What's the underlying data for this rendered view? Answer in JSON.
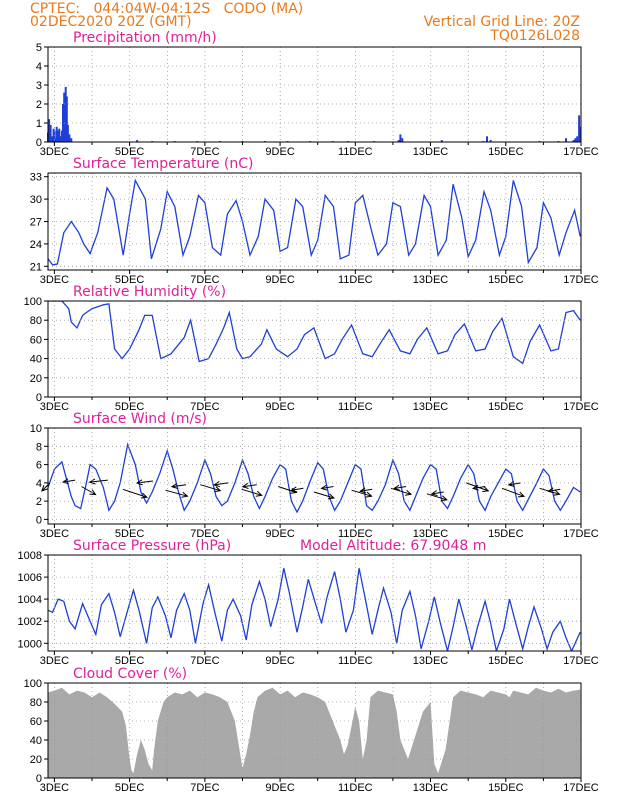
{
  "header": {
    "station": "CPTEC:   044:04W-04:12S   CODO (MA)",
    "run": "02DEC2020 20Z (GMT)",
    "grid_line": "Vertical Grid Line: 20Z",
    "code": "TQ0126L028"
  },
  "colors": {
    "line": "#1f3fd6",
    "header": "#e87a1e",
    "title": "#e0209a",
    "cloud": "#a9a9a9",
    "grid": "#9a9a9a"
  },
  "x_tick_labels": [
    "3DEC",
    "5DEC",
    "7DEC",
    "9DEC",
    "11DEC",
    "13DEC",
    "15DEC",
    "17DEC"
  ],
  "chart_data": [
    {
      "type": "bar",
      "title": "Precipitation (mm/h)",
      "ylim": [
        0,
        5
      ],
      "yticks": [
        0,
        1,
        2,
        3,
        4,
        5
      ],
      "x_days": [
        2.83,
        2.86,
        2.9,
        2.94,
        2.98,
        3.0,
        3.03,
        3.06,
        3.1,
        3.13,
        3.16,
        3.2,
        3.23,
        3.26,
        3.3,
        3.33,
        3.36,
        3.4,
        3.45,
        5.2,
        5.6,
        6.2,
        6.8,
        7.4,
        8.0,
        8.6,
        9.2,
        9.8,
        10.4,
        10.8,
        11.5,
        12.15,
        12.2,
        12.25,
        13.3,
        14.4,
        14.5,
        14.6,
        15.9,
        16.4,
        16.6,
        16.8,
        16.85,
        16.9,
        16.95,
        16.98
      ],
      "values": [
        0.5,
        1.2,
        0.9,
        0.3,
        0.7,
        0.6,
        0.2,
        0.8,
        0.6,
        0.7,
        0.3,
        0.6,
        2.0,
        2.6,
        2.9,
        2.4,
        0.9,
        0.4,
        0.2,
        0.1,
        0.05,
        0.05,
        0.05,
        0.05,
        0.05,
        0.05,
        0.05,
        0.05,
        0.05,
        0.05,
        0.05,
        0.1,
        0.4,
        0.2,
        0.1,
        0.05,
        0.3,
        0.1,
        0.05,
        0.05,
        0.2,
        0.1,
        0.2,
        0.3,
        1.4,
        0.8
      ]
    },
    {
      "type": "line",
      "title": "Surface Temperature (nC)",
      "ylim": [
        20.5,
        33.5
      ],
      "yticks": [
        21,
        24,
        27,
        30,
        33
      ],
      "days": [
        2.83,
        2.95,
        3.08,
        3.25,
        3.45,
        3.65,
        3.78,
        3.95,
        4.15,
        4.4,
        4.58,
        4.83,
        5.0,
        5.15,
        5.42,
        5.58,
        5.83,
        6.0,
        6.2,
        6.42,
        6.6,
        6.83,
        7.0,
        7.2,
        7.42,
        7.6,
        7.83,
        8.0,
        8.2,
        8.42,
        8.6,
        8.83,
        9.0,
        9.2,
        9.42,
        9.6,
        9.83,
        10.0,
        10.2,
        10.42,
        10.6,
        10.83,
        11.0,
        11.2,
        11.42,
        11.6,
        11.83,
        12.0,
        12.2,
        12.42,
        12.6,
        12.83,
        13.0,
        13.2,
        13.42,
        13.6,
        13.83,
        14.0,
        14.2,
        14.42,
        14.6,
        14.83,
        15.0,
        15.2,
        15.42,
        15.6,
        15.83,
        16.0,
        16.2,
        16.42,
        16.6,
        16.83,
        16.98
      ],
      "values": [
        22.0,
        21.2,
        21.3,
        25.5,
        27.0,
        25.5,
        24.0,
        22.7,
        25.5,
        31.5,
        30.0,
        22.5,
        28.0,
        32.5,
        30.0,
        22.0,
        26.0,
        31.0,
        29.0,
        22.5,
        25.0,
        30.5,
        29.5,
        23.5,
        22.5,
        28.0,
        29.8,
        27.0,
        22.5,
        25.0,
        30.0,
        28.5,
        23.0,
        23.5,
        30.0,
        29.0,
        22.5,
        24.5,
        30.5,
        29.0,
        22.0,
        22.5,
        29.5,
        30.5,
        26.0,
        22.5,
        24.0,
        29.5,
        29.0,
        22.5,
        24.0,
        30.5,
        29.0,
        22.5,
        24.5,
        32.0,
        27.5,
        22.3,
        24.5,
        31.0,
        28.5,
        22.5,
        25.0,
        32.5,
        29.0,
        21.5,
        23.5,
        29.5,
        27.5,
        22.5,
        25.5,
        28.5,
        25.0
      ]
    },
    {
      "type": "line",
      "title": "Relative Humidity (%)",
      "ylim": [
        0,
        100
      ],
      "yticks": [
        0,
        20,
        40,
        60,
        80,
        100
      ],
      "days": [
        2.83,
        3.2,
        3.38,
        3.45,
        3.6,
        3.75,
        3.85,
        4.0,
        4.3,
        4.45,
        4.6,
        4.8,
        5.0,
        5.25,
        5.4,
        5.6,
        5.83,
        6.1,
        6.45,
        6.62,
        6.85,
        7.1,
        7.3,
        7.5,
        7.65,
        7.85,
        8.0,
        8.2,
        8.5,
        8.65,
        8.9,
        9.2,
        9.45,
        9.65,
        9.9,
        10.2,
        10.45,
        10.65,
        10.9,
        11.2,
        11.45,
        11.65,
        11.9,
        12.2,
        12.45,
        12.65,
        12.9,
        13.2,
        13.45,
        13.65,
        13.9,
        14.2,
        14.45,
        14.65,
        14.9,
        15.2,
        15.45,
        15.65,
        15.9,
        16.2,
        16.4,
        16.6,
        16.8,
        16.98
      ],
      "values": [
        100,
        100,
        92,
        78,
        72,
        85,
        88,
        92,
        96,
        97,
        50,
        40,
        50,
        70,
        85,
        85,
        40,
        45,
        62,
        80,
        37,
        40,
        55,
        72,
        88,
        50,
        40,
        42,
        55,
        70,
        50,
        42,
        50,
        65,
        72,
        40,
        45,
        60,
        75,
        45,
        42,
        55,
        70,
        48,
        45,
        60,
        72,
        45,
        48,
        65,
        76,
        48,
        50,
        68,
        82,
        42,
        35,
        58,
        75,
        48,
        50,
        88,
        90,
        80
      ]
    },
    {
      "type": "line",
      "title": "Surface Wind (m/s)",
      "ylim": [
        -0.5,
        10
      ],
      "yticks": [
        0,
        2,
        4,
        6,
        8,
        10
      ],
      "days": [
        2.83,
        3.0,
        3.2,
        3.35,
        3.45,
        3.55,
        3.7,
        3.85,
        3.95,
        4.1,
        4.3,
        4.45,
        4.6,
        4.75,
        4.95,
        5.15,
        5.3,
        5.45,
        5.6,
        5.8,
        6.0,
        6.15,
        6.3,
        6.45,
        6.6,
        6.8,
        7.0,
        7.15,
        7.3,
        7.45,
        7.6,
        7.8,
        8.0,
        8.15,
        8.3,
        8.45,
        8.6,
        8.8,
        9.0,
        9.15,
        9.3,
        9.45,
        9.6,
        9.8,
        10.0,
        10.15,
        10.3,
        10.45,
        10.6,
        10.8,
        11.0,
        11.15,
        11.3,
        11.45,
        11.6,
        11.8,
        12.0,
        12.15,
        12.3,
        12.45,
        12.6,
        12.8,
        13.0,
        13.15,
        13.3,
        13.45,
        13.6,
        13.8,
        14.0,
        14.15,
        14.3,
        14.45,
        14.6,
        14.8,
        15.0,
        15.15,
        15.3,
        15.45,
        15.6,
        15.8,
        16.0,
        16.15,
        16.3,
        16.45,
        16.6,
        16.8,
        16.98
      ],
      "values": [
        3.5,
        5.5,
        6.3,
        4.0,
        2.5,
        1.5,
        1.2,
        4.0,
        6.0,
        5.5,
        3.5,
        1.0,
        2.0,
        4.0,
        8.2,
        6.0,
        3.0,
        1.8,
        3.0,
        5.0,
        7.5,
        5.5,
        3.0,
        1.0,
        2.0,
        4.0,
        6.5,
        5.0,
        2.5,
        1.5,
        2.0,
        4.0,
        6.5,
        5.0,
        2.5,
        1.2,
        2.5,
        4.5,
        6.0,
        5.5,
        2.0,
        0.8,
        2.0,
        4.2,
        6.2,
        5.5,
        2.5,
        1.0,
        2.0,
        4.0,
        6.0,
        5.5,
        1.5,
        1.0,
        2.0,
        3.8,
        6.5,
        5.0,
        2.0,
        1.0,
        2.5,
        4.5,
        6.0,
        5.5,
        2.0,
        1.2,
        2.5,
        4.5,
        6.0,
        5.0,
        2.0,
        1.0,
        2.5,
        4.0,
        5.5,
        5.0,
        2.0,
        1.0,
        2.2,
        3.8,
        5.5,
        4.8,
        2.0,
        1.0,
        2.0,
        3.5,
        3.0
      ],
      "vector_days": [
        2.88,
        3.55,
        3.72,
        4.42,
        4.82,
        5.62,
        5.95,
        6.5,
        6.88,
        7.62,
        7.98,
        8.38,
        8.95,
        9.62,
        9.9,
        10.42,
        10.9,
        11.45,
        11.95,
        12.35,
        12.9,
        13.35,
        13.95,
        14.45,
        14.9,
        15.4,
        15.9,
        16.45
      ],
      "vector_speeds": [
        4.0,
        4.3,
        3.6,
        4.3,
        3.3,
        4.2,
        3.2,
        3.8,
        3.8,
        4.0,
        3.3,
        3.8,
        3.6,
        3.4,
        3.0,
        3.6,
        3.2,
        3.3,
        3.4,
        3.6,
        2.8,
        3.0,
        4.0,
        3.6,
        3.4,
        4.0,
        3.4,
        3.3
      ],
      "vector_dx": [
        -8,
        -12,
        14,
        -18,
        24,
        -16,
        22,
        -14,
        20,
        -14,
        20,
        -14,
        18,
        -12,
        20,
        -12,
        20,
        -12,
        20,
        -12,
        20,
        -12,
        22,
        -12,
        22,
        -12,
        20,
        -12
      ],
      "vector_dy": [
        8,
        2,
        8,
        2,
        8,
        2,
        6,
        2,
        6,
        2,
        6,
        2,
        6,
        2,
        6,
        2,
        6,
        2,
        6,
        2,
        6,
        2,
        8,
        2,
        8,
        2,
        6,
        2
      ]
    },
    {
      "type": "line",
      "title": "Surface Pressure (hPa)",
      "annotation": "Model Altitude: 67.9048  m",
      "ylim": [
        999.3,
        1008
      ],
      "yticks": [
        1000,
        1002,
        1004,
        1006,
        1008
      ],
      "days": [
        2.83,
        2.95,
        3.1,
        3.25,
        3.4,
        3.55,
        3.75,
        3.95,
        4.1,
        4.25,
        4.45,
        4.6,
        4.75,
        4.95,
        5.1,
        5.25,
        5.45,
        5.6,
        5.75,
        5.95,
        6.1,
        6.25,
        6.45,
        6.6,
        6.75,
        6.95,
        7.1,
        7.25,
        7.45,
        7.6,
        7.75,
        7.95,
        8.1,
        8.25,
        8.45,
        8.6,
        8.75,
        8.95,
        9.1,
        9.25,
        9.45,
        9.6,
        9.75,
        9.95,
        10.1,
        10.25,
        10.45,
        10.6,
        10.75,
        10.95,
        11.1,
        11.25,
        11.45,
        11.6,
        11.75,
        11.95,
        12.1,
        12.25,
        12.45,
        12.6,
        12.75,
        12.95,
        13.1,
        13.25,
        13.45,
        13.6,
        13.75,
        13.95,
        14.1,
        14.25,
        14.45,
        14.6,
        14.75,
        14.95,
        15.1,
        15.25,
        15.45,
        15.6,
        15.75,
        15.95,
        16.1,
        16.25,
        16.45,
        16.6,
        16.75,
        16.98
      ],
      "values": [
        1003.0,
        1002.8,
        1004.0,
        1003.8,
        1002.0,
        1001.3,
        1003.6,
        1002.0,
        1000.8,
        1003.5,
        1004.5,
        1002.8,
        1000.6,
        1003.0,
        1004.8,
        1003.0,
        1000.0,
        1003.2,
        1004.2,
        1002.5,
        1000.5,
        1003.0,
        1004.5,
        1003.0,
        1000.0,
        1003.6,
        1005.3,
        1003.0,
        1000.2,
        1003.0,
        1004.0,
        1002.5,
        1000.3,
        1003.5,
        1005.6,
        1004.0,
        1001.5,
        1004.0,
        1006.8,
        1004.5,
        1001.0,
        1003.3,
        1005.8,
        1003.5,
        1001.8,
        1004.2,
        1006.5,
        1004.0,
        1001.0,
        1003.0,
        1006.8,
        1004.3,
        1000.8,
        1003.0,
        1005.0,
        1002.8,
        1000.0,
        1003.0,
        1004.7,
        1002.5,
        999.5,
        1002.0,
        1004.2,
        1002.0,
        999.3,
        1001.5,
        1004.0,
        1001.5,
        999.4,
        1001.5,
        1003.8,
        1001.8,
        999.3,
        1001.3,
        1004.0,
        1002.0,
        999.5,
        1001.5,
        1003.3,
        1001.3,
        999.5,
        1001.0,
        1002.0,
        1000.5,
        999.3,
        1001.0
      ]
    },
    {
      "type": "area",
      "title": "Cloud Cover (%)",
      "ylim": [
        0,
        100
      ],
      "yticks": [
        0,
        20,
        40,
        60,
        80,
        100
      ],
      "days": [
        2.83,
        3.0,
        3.2,
        3.4,
        3.6,
        3.8,
        4.0,
        4.2,
        4.4,
        4.6,
        4.8,
        4.9,
        5.0,
        5.05,
        5.1,
        5.2,
        5.3,
        5.4,
        5.5,
        5.6,
        5.65,
        5.75,
        5.9,
        6.0,
        6.2,
        6.4,
        6.6,
        6.8,
        7.0,
        7.2,
        7.4,
        7.6,
        7.8,
        7.9,
        8.0,
        8.1,
        8.2,
        8.3,
        8.4,
        8.6,
        8.8,
        9.0,
        9.2,
        9.4,
        9.6,
        9.8,
        10.0,
        10.2,
        10.4,
        10.6,
        10.7,
        10.8,
        10.9,
        11.0,
        11.1,
        11.2,
        11.3,
        11.4,
        11.6,
        11.8,
        12.0,
        12.1,
        12.2,
        12.4,
        12.6,
        12.8,
        13.0,
        13.1,
        13.2,
        13.4,
        13.6,
        13.8,
        14.0,
        14.2,
        14.4,
        14.6,
        14.8,
        15.0,
        15.1,
        15.2,
        15.4,
        15.6,
        15.8,
        16.0,
        16.2,
        16.4,
        16.6,
        16.8,
        16.98
      ],
      "values": [
        90,
        92,
        95,
        88,
        92,
        90,
        85,
        90,
        85,
        78,
        70,
        55,
        20,
        8,
        5,
        25,
        40,
        30,
        15,
        8,
        30,
        60,
        80,
        85,
        90,
        88,
        92,
        85,
        90,
        88,
        85,
        80,
        60,
        35,
        10,
        25,
        45,
        70,
        85,
        92,
        95,
        88,
        92,
        85,
        90,
        88,
        85,
        80,
        60,
        40,
        25,
        35,
        55,
        75,
        60,
        20,
        40,
        85,
        92,
        90,
        88,
        70,
        40,
        20,
        45,
        70,
        80,
        15,
        5,
        30,
        85,
        92,
        90,
        88,
        85,
        92,
        90,
        88,
        85,
        92,
        90,
        88,
        95,
        92,
        90,
        94,
        90,
        92,
        93
      ]
    }
  ]
}
